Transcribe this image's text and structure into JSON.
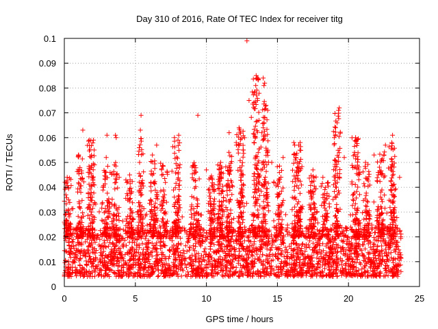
{
  "chart_data": {
    "type": "scatter",
    "title": "Day 310 of 2016, Rate Of TEC Index for receiver titg",
    "xlabel": "GPS time / hours",
    "ylabel": "ROTI / TECUs",
    "xlim": [
      0,
      25
    ],
    "ylim": [
      0,
      0.1
    ],
    "xticks": [
      0,
      5,
      10,
      15,
      20,
      25
    ],
    "yticks": [
      0,
      0.01,
      0.02,
      0.03,
      0.04,
      0.05,
      0.06,
      0.07,
      0.08,
      0.09,
      0.1
    ],
    "xtick_labels": [
      "0",
      "5",
      "10",
      "15",
      "20",
      "25"
    ],
    "ytick_labels": [
      "0",
      "0.01",
      "0.02",
      "0.03",
      "0.04",
      "0.05",
      "0.06",
      "0.07",
      "0.08",
      "0.09",
      "0.1"
    ],
    "grid": true,
    "marker": "+",
    "color": "#ff0000",
    "series": [
      {
        "name": "ROTI",
        "band": {
          "x_range": [
            0,
            23.7
          ],
          "base_range": [
            0.004,
            0.024
          ],
          "note": "dense band of points between about 0.005 and 0.025 TECU/min throughout the day, with a small gap near 19.3 h"
        },
        "highlights": [
          [
            12.85,
            0.099
          ],
          [
            13.5,
            0.085
          ],
          [
            13.55,
            0.084
          ],
          [
            14.0,
            0.084
          ],
          [
            14.05,
            0.081
          ],
          [
            14.1,
            0.082
          ],
          [
            13.6,
            0.075
          ],
          [
            13.0,
            0.075
          ],
          [
            14.2,
            0.073
          ],
          [
            13.7,
            0.067
          ],
          [
            13.9,
            0.062
          ],
          [
            14.0,
            0.064
          ],
          [
            19.3,
            0.071
          ],
          [
            19.35,
            0.072
          ],
          [
            19.2,
            0.066
          ],
          [
            19.1,
            0.064
          ],
          [
            19.0,
            0.06
          ],
          [
            9.4,
            0.069
          ],
          [
            5.4,
            0.069
          ],
          [
            5.35,
            0.063
          ],
          [
            1.3,
            0.063
          ],
          [
            1.75,
            0.059
          ],
          [
            2.05,
            0.059
          ],
          [
            2.1,
            0.055
          ],
          [
            3.0,
            0.061
          ],
          [
            3.6,
            0.061
          ],
          [
            3.65,
            0.06
          ],
          [
            7.75,
            0.06
          ],
          [
            8.0,
            0.059
          ],
          [
            8.05,
            0.061
          ],
          [
            11.6,
            0.062
          ],
          [
            12.3,
            0.064
          ],
          [
            12.1,
            0.058
          ],
          [
            16.15,
            0.058
          ],
          [
            16.5,
            0.057
          ],
          [
            16.6,
            0.058
          ],
          [
            20.5,
            0.06
          ],
          [
            20.55,
            0.059
          ],
          [
            23.1,
            0.061
          ],
          [
            23.05,
            0.058
          ],
          [
            22.6,
            0.057
          ],
          [
            6.5,
            0.057
          ],
          [
            6.2,
            0.053
          ],
          [
            1.0,
            0.053
          ],
          [
            2.95,
            0.052
          ],
          [
            11.0,
            0.05
          ],
          [
            10.8,
            0.049
          ],
          [
            14.6,
            0.05
          ],
          [
            15.4,
            0.052
          ],
          [
            19.7,
            0.052
          ],
          [
            21.2,
            0.05
          ],
          [
            21.8,
            0.053
          ],
          [
            22.5,
            0.053
          ],
          [
            5.3,
            0.05
          ],
          [
            12.6,
            0.055
          ],
          [
            13.35,
            0.058
          ],
          [
            0.05,
            0.042
          ],
          [
            0.1,
            0.04
          ],
          [
            0.2,
            0.044
          ],
          [
            3.5,
            0.045
          ],
          [
            4.6,
            0.045
          ],
          [
            9.1,
            0.043
          ],
          [
            10.0,
            0.047
          ],
          [
            17.5,
            0.047
          ],
          [
            18.2,
            0.044
          ],
          [
            20.8,
            0.046
          ],
          [
            23.6,
            0.044
          ]
        ],
        "clusters": [
          {
            "x": 0.2,
            "peak": 0.044,
            "spread": 0.35,
            "count": 70
          },
          {
            "x": 1.1,
            "peak": 0.053,
            "spread": 0.3,
            "count": 70
          },
          {
            "x": 1.9,
            "peak": 0.06,
            "spread": 0.35,
            "count": 100
          },
          {
            "x": 2.95,
            "peak": 0.05,
            "spread": 0.35,
            "count": 70
          },
          {
            "x": 3.6,
            "peak": 0.05,
            "spread": 0.3,
            "count": 60
          },
          {
            "x": 4.6,
            "peak": 0.045,
            "spread": 0.35,
            "count": 60
          },
          {
            "x": 5.35,
            "peak": 0.06,
            "spread": 0.3,
            "count": 70
          },
          {
            "x": 6.3,
            "peak": 0.055,
            "spread": 0.35,
            "count": 80
          },
          {
            "x": 7.0,
            "peak": 0.05,
            "spread": 0.3,
            "count": 60
          },
          {
            "x": 7.9,
            "peak": 0.06,
            "spread": 0.35,
            "count": 90
          },
          {
            "x": 9.2,
            "peak": 0.05,
            "spread": 0.4,
            "count": 70
          },
          {
            "x": 10.4,
            "peak": 0.045,
            "spread": 0.35,
            "count": 70
          },
          {
            "x": 11.0,
            "peak": 0.05,
            "spread": 0.3,
            "count": 80
          },
          {
            "x": 11.6,
            "peak": 0.055,
            "spread": 0.3,
            "count": 70
          },
          {
            "x": 12.4,
            "peak": 0.064,
            "spread": 0.35,
            "count": 110
          },
          {
            "x": 13.5,
            "peak": 0.085,
            "spread": 0.35,
            "count": 130
          },
          {
            "x": 14.1,
            "peak": 0.075,
            "spread": 0.3,
            "count": 110
          },
          {
            "x": 15.1,
            "peak": 0.05,
            "spread": 0.4,
            "count": 60
          },
          {
            "x": 16.4,
            "peak": 0.057,
            "spread": 0.4,
            "count": 120
          },
          {
            "x": 17.5,
            "peak": 0.045,
            "spread": 0.35,
            "count": 80
          },
          {
            "x": 18.4,
            "peak": 0.042,
            "spread": 0.35,
            "count": 60
          },
          {
            "x": 19.2,
            "peak": 0.07,
            "spread": 0.3,
            "count": 90
          },
          {
            "x": 20.5,
            "peak": 0.06,
            "spread": 0.35,
            "count": 90
          },
          {
            "x": 21.3,
            "peak": 0.05,
            "spread": 0.35,
            "count": 70
          },
          {
            "x": 22.3,
            "peak": 0.055,
            "spread": 0.35,
            "count": 80
          },
          {
            "x": 23.1,
            "peak": 0.06,
            "spread": 0.3,
            "count": 90
          }
        ]
      }
    ]
  }
}
